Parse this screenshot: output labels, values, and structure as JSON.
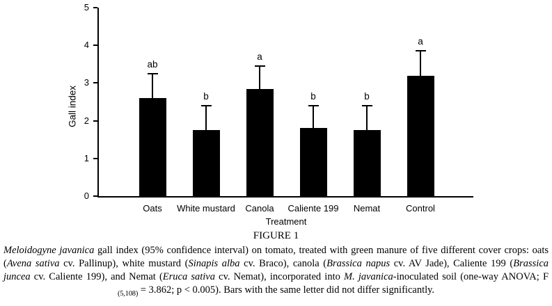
{
  "page": {
    "background": "#ffffff",
    "text_color": "#000000"
  },
  "chart_data": {
    "type": "bar",
    "title": "",
    "xlabel": "Treatment",
    "ylabel": "Gall index",
    "ylim": [
      0,
      5
    ],
    "yticks": [
      0,
      1,
      2,
      3,
      4,
      5
    ],
    "categories": [
      "Oats",
      "White mustard",
      "Canola",
      "Caliente 199",
      "Nemat",
      "Control"
    ],
    "values": [
      2.6,
      1.75,
      2.85,
      1.8,
      1.75,
      3.2
    ],
    "error_bar_tops": [
      3.25,
      2.4,
      3.45,
      2.4,
      2.4,
      3.85
    ],
    "significance_letters": [
      "ab",
      "b",
      "a",
      "b",
      "b",
      "a"
    ],
    "bar_color": "#000000",
    "axis_color": "#000000",
    "grid": false,
    "legend": false,
    "error_bars": "upper 95% confidence interval"
  },
  "caption": {
    "title": "FIGURE 1",
    "segments": [
      {
        "text": "Meloidogyne javanica",
        "style": "italic"
      },
      {
        "text": " gall index (95% confidence interval) on tomato, treated with green manure of five different cover crops: oats (",
        "style": "plain"
      },
      {
        "text": "Avena sativa",
        "style": "italic"
      },
      {
        "text": " cv. Pallinup), white mustard (",
        "style": "plain"
      },
      {
        "text": "Sinapis alba",
        "style": "italic"
      },
      {
        "text": " cv. Braco), canola (",
        "style": "plain"
      },
      {
        "text": "Brassica napus",
        "style": "italic"
      },
      {
        "text": " cv. AV Jade), Caliente 199 (",
        "style": "plain"
      },
      {
        "text": "Brassica juncea",
        "style": "italic"
      },
      {
        "text": " cv. Caliente 199), and Nemat (",
        "style": "plain"
      },
      {
        "text": "Eruca sativa",
        "style": "italic"
      },
      {
        "text": " cv. Nemat), incorporated into ",
        "style": "plain"
      },
      {
        "text": "M. javanica",
        "style": "italic"
      },
      {
        "text": "-inoculated soil (one-way ANOVA; F ",
        "style": "plain"
      },
      {
        "text": "(5,108)",
        "style": "sub"
      },
      {
        "text": " = 3.862; p < 0.005). Bars with the same letter did not differ significantly.",
        "style": "plain"
      }
    ]
  }
}
